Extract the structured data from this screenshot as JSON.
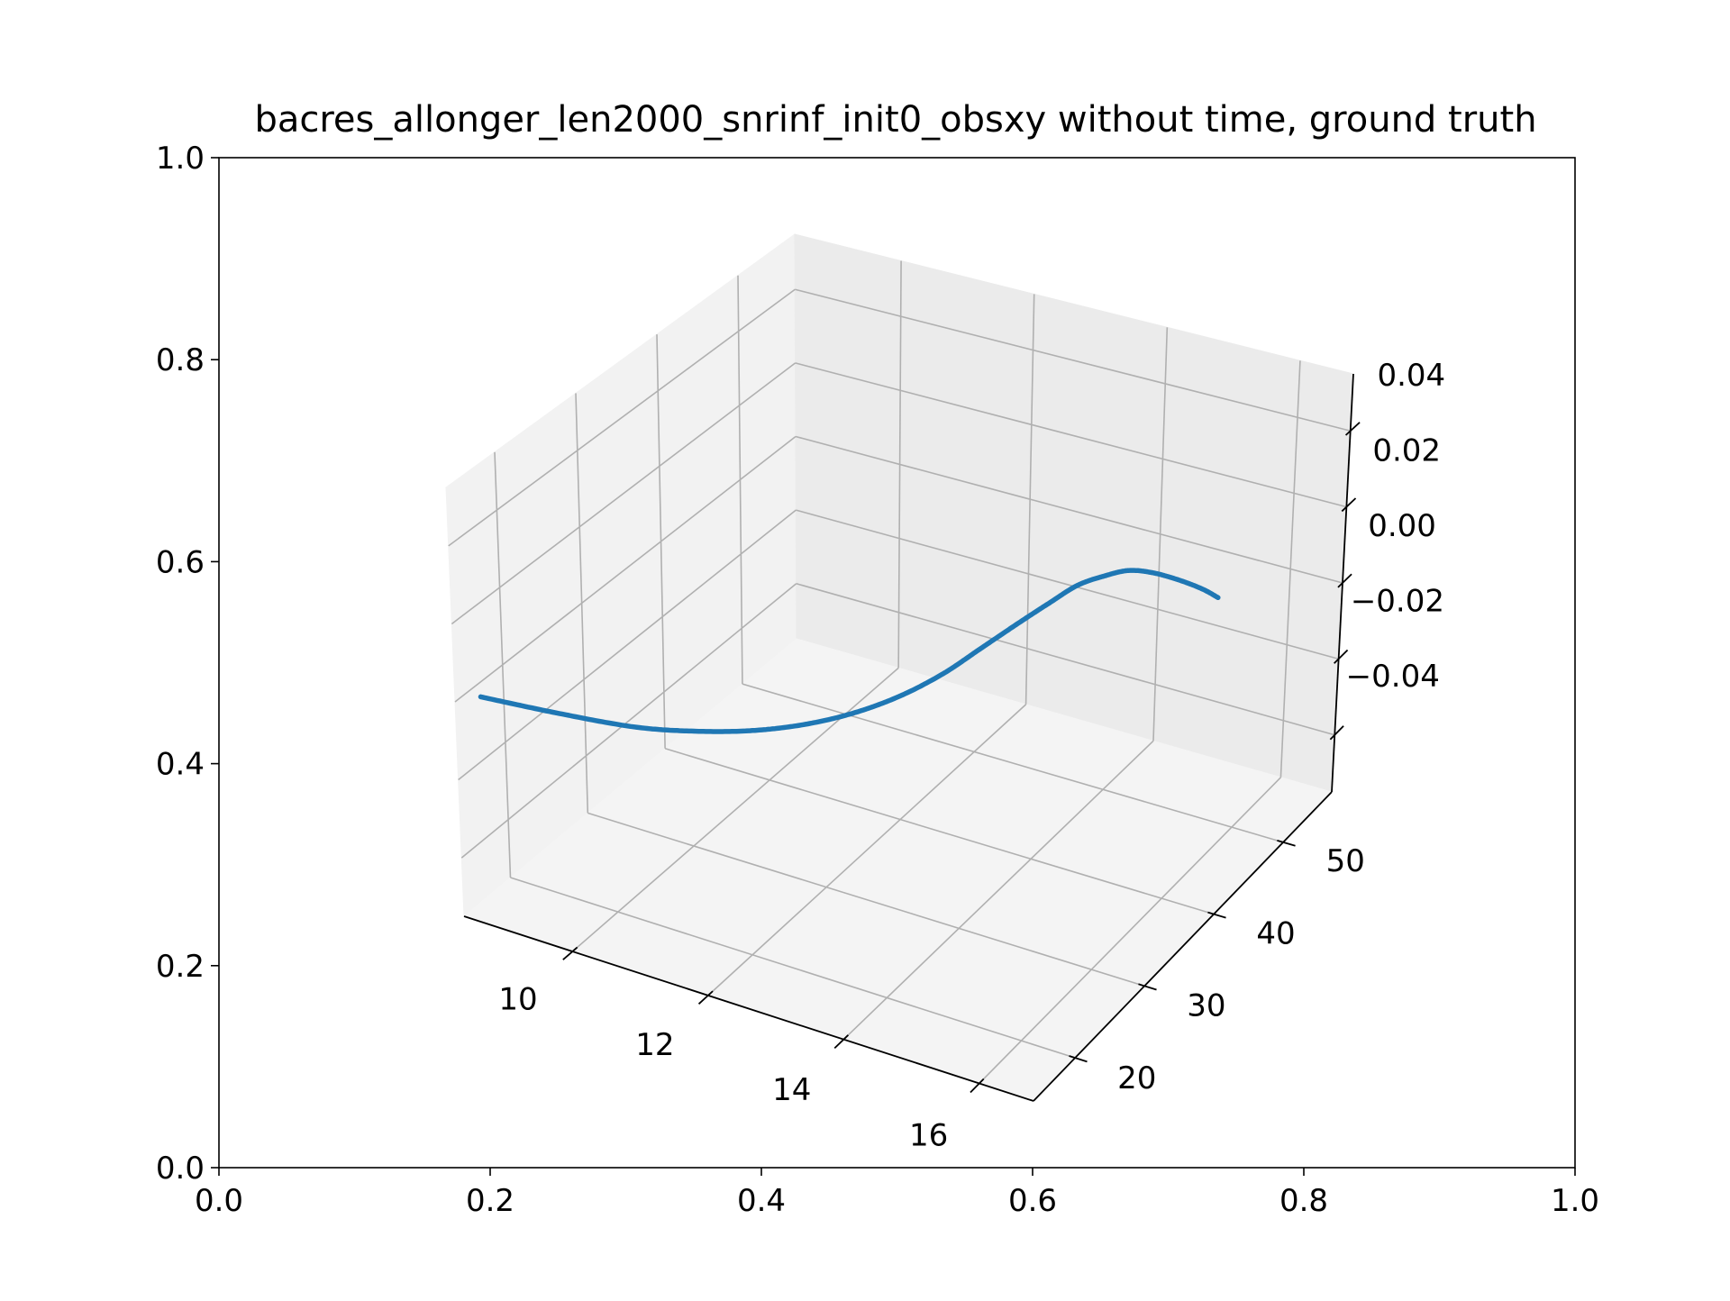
{
  "chart_data": {
    "type": "line",
    "title": "bacres_allonger_len2000_snrinf_init0_obsxy without time, ground truth",
    "outer_axes": {
      "x_ticks": [
        "0.0",
        "0.2",
        "0.4",
        "0.6",
        "0.8",
        "1.0"
      ],
      "y_ticks": [
        "0.0",
        "0.2",
        "0.4",
        "0.6",
        "0.8",
        "1.0"
      ],
      "xlim": [
        0,
        1
      ],
      "ylim": [
        0,
        1
      ]
    },
    "axes3d": {
      "x_ticks": [
        "10",
        "12",
        "14",
        "16"
      ],
      "xlim": [
        8.4,
        16.8
      ],
      "y_ticks": [
        "20",
        "30",
        "40",
        "50"
      ],
      "ylim": [
        14,
        57
      ],
      "z_ticks": [
        "−0.04",
        "−0.02",
        "0.00",
        "0.02",
        "0.04"
      ],
      "zlim": [
        -0.055,
        0.055
      ],
      "grid": true,
      "panes": true
    },
    "series": [
      {
        "color": "#1f77b4",
        "marker": "dot",
        "x": [
          15.5,
          15.2,
          14.8,
          14.4,
          14.1,
          13.9,
          13.7,
          13.6,
          13.5,
          13.4,
          13.3,
          13.1,
          12.8,
          12.4,
          11.9,
          11.3,
          10.6,
          9.6,
          8.6
        ],
        "y": [
          51.5,
          52.0,
          52.3,
          52.3,
          51.8,
          50.5,
          48.5,
          45.5,
          42.0,
          38.0,
          34.0,
          30.0,
          26.5,
          23.5,
          21.0,
          19.0,
          17.4,
          16.3,
          15.5
        ],
        "z": [
          0.0,
          0.0,
          0.0,
          0.0,
          0.0,
          0.0,
          0.0,
          0.0,
          0.0,
          0.0,
          0.0,
          0.0,
          0.0,
          0.0,
          0.0,
          0.0,
          0.0,
          0.0,
          0.0
        ]
      }
    ]
  }
}
